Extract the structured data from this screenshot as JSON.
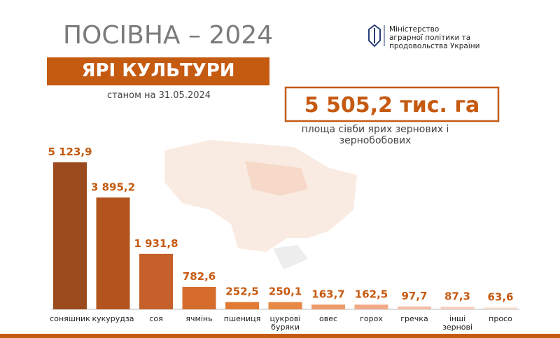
{
  "chart_data": {
    "type": "bar",
    "title": "ПОСІВНА – 2024",
    "subtitle": "ЯРІ КУЛЬТУРИ",
    "date_note": "станом на 31.05.2024",
    "total": "5 505,2 тис. га",
    "total_caption": [
      "площа сівби ярих зернових і",
      "зернобобових"
    ],
    "ministry": [
      "Міністерство",
      "аграрної політики та",
      "продовольства України"
    ],
    "categories": [
      "соняшник",
      "кукурудза",
      "соя",
      "ячмінь",
      "пшениця",
      "цукрові буряки",
      "овес",
      "горох",
      "гречка",
      "інші зернові",
      "просо"
    ],
    "values": [
      5123.9,
      3895.2,
      1931.8,
      782.6,
      252.5,
      250.1,
      163.7,
      162.5,
      97.7,
      87.3,
      63.6
    ],
    "value_labels": [
      "5 123,9",
      "3 895,2",
      "1 931,8",
      "782,6",
      "252,5",
      "250,1",
      "163,7",
      "162,5",
      "97,7",
      "87,3",
      "63,6"
    ],
    "colors": [
      "#9a4a1c",
      "#b3541e",
      "#c5602a",
      "#d66c2c",
      "#e27a36",
      "#e98745",
      "#ee9a68",
      "#f1a988",
      "#f4bea6",
      "#f6cdbd",
      "#f8dacc"
    ]
  }
}
